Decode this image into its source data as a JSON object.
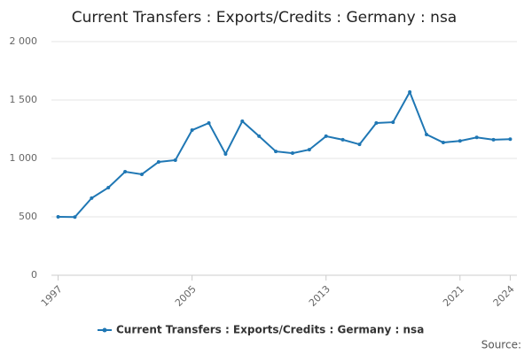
{
  "chart_data": {
    "type": "line",
    "title": "Current Transfers : Exports/Credits : Germany : nsa",
    "x": [
      1997,
      1998,
      1999,
      2000,
      2001,
      2002,
      2003,
      2004,
      2005,
      2006,
      2007,
      2008,
      2009,
      2010,
      2011,
      2012,
      2013,
      2014,
      2015,
      2016,
      2017,
      2018,
      2019,
      2020,
      2021,
      2022,
      2023,
      2024
    ],
    "series": [
      {
        "name": "Current Transfers : Exports/Credits : Germany : nsa",
        "color": "#1f77b4",
        "values": [
          500,
          498,
          660,
          750,
          886,
          864,
          970,
          985,
          1242,
          1303,
          1038,
          1318,
          1190,
          1060,
          1045,
          1075,
          1190,
          1160,
          1120,
          1303,
          1310,
          1568,
          1205,
          1136,
          1150,
          1180,
          1160,
          1165
        ]
      }
    ],
    "xlim": [
      1996.6,
      2024.4
    ],
    "xticks": [
      1997,
      2005,
      2013,
      2021,
      2024
    ],
    "ylim": [
      0,
      2000
    ],
    "yticks": [
      0,
      500,
      {
        "value": 1000,
        "label": "1 000"
      },
      {
        "value": 1500,
        "label": "1 500"
      },
      {
        "value": 2000,
        "label": "2 000"
      }
    ],
    "grid": true,
    "source": "Source:"
  }
}
